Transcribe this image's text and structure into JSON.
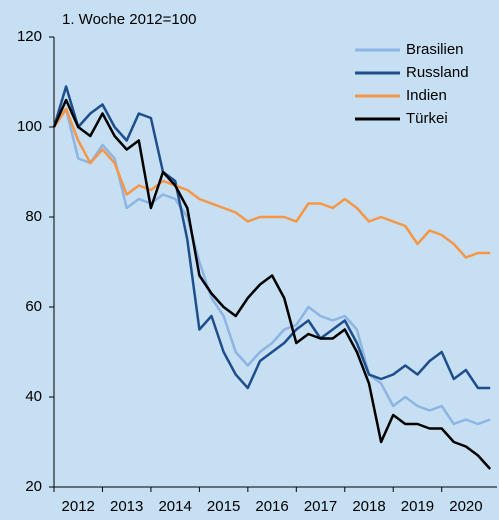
{
  "chart_data": {
    "type": "line",
    "subtitle": "1. Woche 2012=100",
    "x": [
      2012,
      2012.25,
      2012.5,
      2012.75,
      2013,
      2013.25,
      2013.5,
      2013.75,
      2014,
      2014.25,
      2014.5,
      2014.75,
      2015,
      2015.25,
      2015.5,
      2015.75,
      2016,
      2016.25,
      2016.5,
      2016.75,
      2017,
      2017.25,
      2017.5,
      2017.75,
      2018,
      2018.25,
      2018.5,
      2018.75,
      2019,
      2019.25,
      2019.5,
      2019.75,
      2020,
      2020.25,
      2020.5,
      2020.75,
      2021
    ],
    "series": [
      {
        "name": "Brasilien",
        "color": "#8db4e2",
        "values": [
          100,
          104,
          93,
          92,
          96,
          93,
          82,
          84,
          83,
          85,
          84,
          80,
          70,
          62,
          58,
          50,
          47,
          50,
          52,
          55,
          56,
          60,
          58,
          57,
          58,
          55,
          45,
          43,
          38,
          40,
          38,
          37,
          38,
          34,
          35,
          34,
          35
        ]
      },
      {
        "name": "Russland",
        "color": "#1f4e8c",
        "values": [
          100,
          109,
          100,
          103,
          105,
          100,
          97,
          103,
          102,
          90,
          88,
          75,
          55,
          58,
          50,
          45,
          42,
          48,
          50,
          52,
          55,
          57,
          53,
          55,
          57,
          52,
          45,
          44,
          45,
          47,
          45,
          48,
          50,
          44,
          46,
          42,
          42
        ]
      },
      {
        "name": "Indien",
        "color": "#f79646",
        "values": [
          100,
          104,
          97,
          92,
          95,
          92,
          85,
          87,
          86,
          88,
          87,
          86,
          84,
          83,
          82,
          81,
          79,
          80,
          80,
          80,
          79,
          83,
          83,
          82,
          84,
          82,
          79,
          80,
          79,
          78,
          74,
          77,
          76,
          74,
          71,
          72,
          72
        ]
      },
      {
        "name": "Türkei",
        "color": "#000000",
        "values": [
          100,
          106,
          100,
          98,
          103,
          98,
          95,
          97,
          82,
          90,
          87,
          82,
          67,
          63,
          60,
          58,
          62,
          65,
          67,
          62,
          52,
          54,
          53,
          53,
          55,
          50,
          43,
          30,
          36,
          34,
          34,
          33,
          33,
          30,
          29,
          27,
          24
        ]
      }
    ],
    "xlim": [
      2012,
      2021.1
    ],
    "xticks": [
      {
        "value": 2012.5,
        "label": "2012"
      },
      {
        "value": 2013.5,
        "label": "2013"
      },
      {
        "value": 2014.5,
        "label": "2014"
      },
      {
        "value": 2015.5,
        "label": "2015"
      },
      {
        "value": 2016.5,
        "label": "2016"
      },
      {
        "value": 2017.5,
        "label": "2017"
      },
      {
        "value": 2018.5,
        "label": "2018"
      },
      {
        "value": 2019.5,
        "label": "2019"
      },
      {
        "value": 2020.5,
        "label": "2020"
      }
    ],
    "ylim": [
      20,
      120
    ],
    "yticks": [
      20,
      40,
      60,
      80,
      100,
      120
    ],
    "grid": false,
    "legend": "top-right"
  }
}
